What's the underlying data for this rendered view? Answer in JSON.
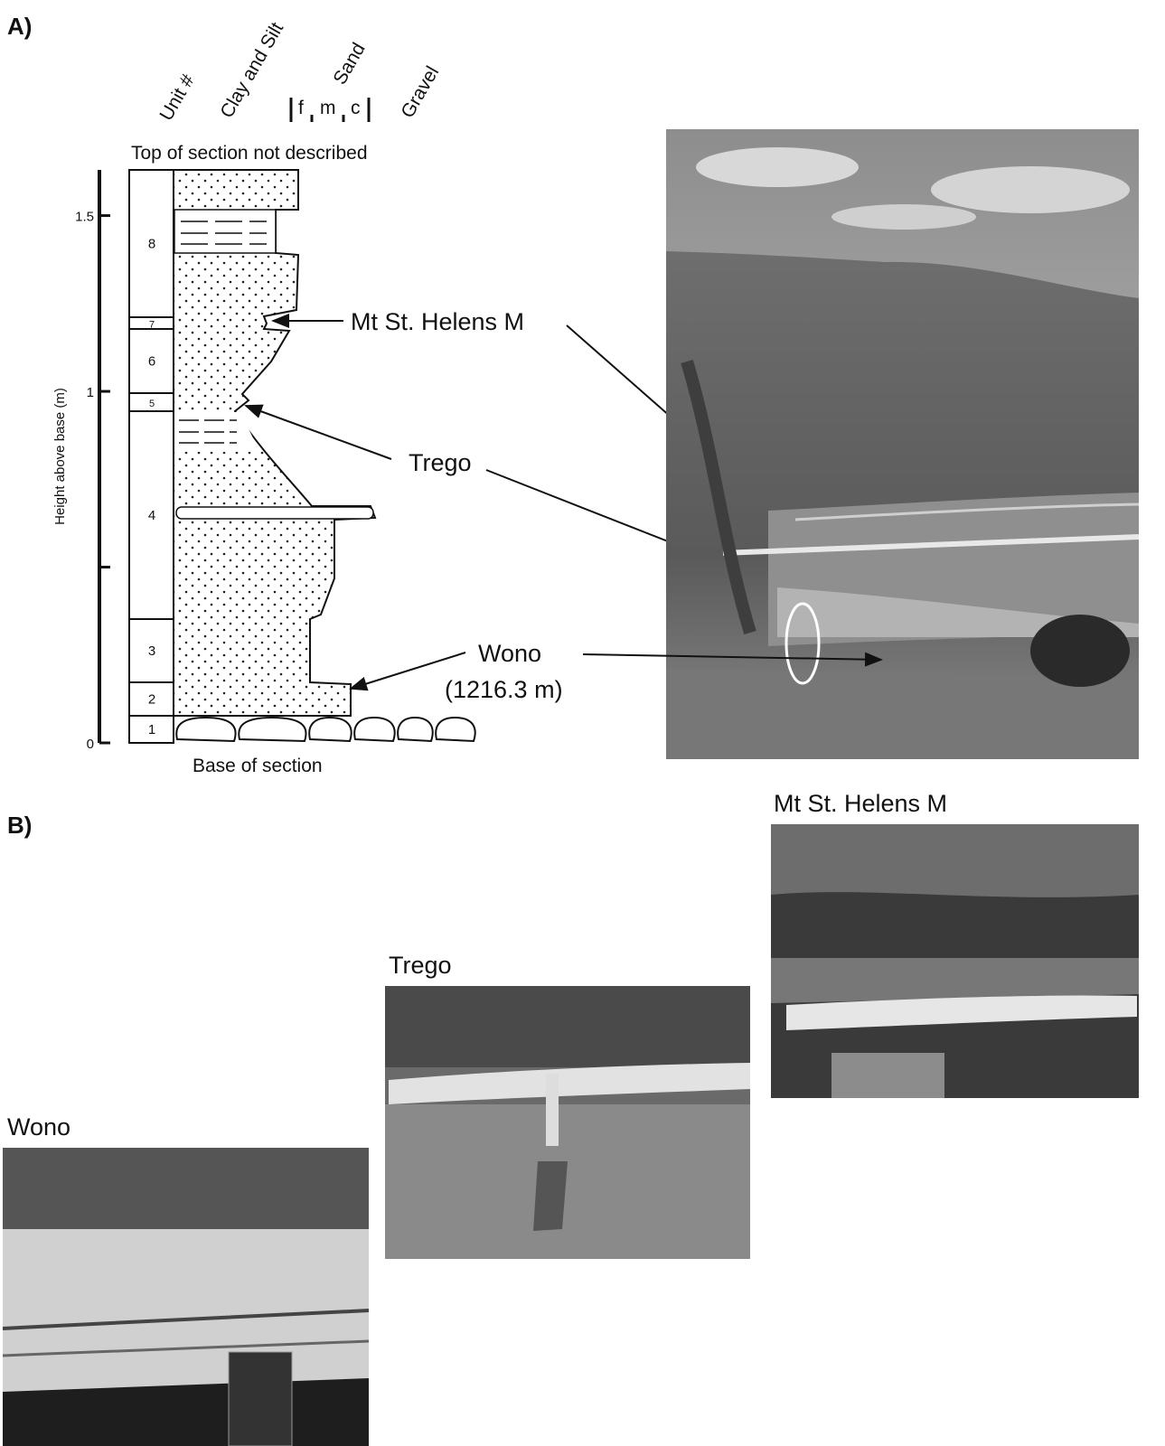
{
  "panel_a": {
    "label": "A)",
    "column_headers": {
      "unit": "Unit #",
      "clay_silt": "Clay and Silt",
      "sand": "Sand",
      "sand_scale": [
        "f",
        "m",
        "c"
      ],
      "gravel": "Gravel"
    },
    "top_note": "Top of section not described",
    "base_note": "Base of section",
    "height_axis": {
      "label": "Height above base (m)",
      "lim": [
        0,
        1.63
      ],
      "ticks": [
        0,
        1,
        1.5
      ],
      "minor_ticks": [
        0.5
      ]
    },
    "units": [
      "1",
      "2",
      "3",
      "4",
      "5",
      "6",
      "7",
      "8"
    ],
    "tephra_labels": {
      "msh": "Mt St. Helens M",
      "trego": "Trego",
      "wono": "Wono",
      "wono_elevation": "(1216.3 m)"
    }
  },
  "panel_b": {
    "label": "B)",
    "photos": [
      "Mt St. Helens M",
      "Trego",
      "Wono"
    ]
  }
}
